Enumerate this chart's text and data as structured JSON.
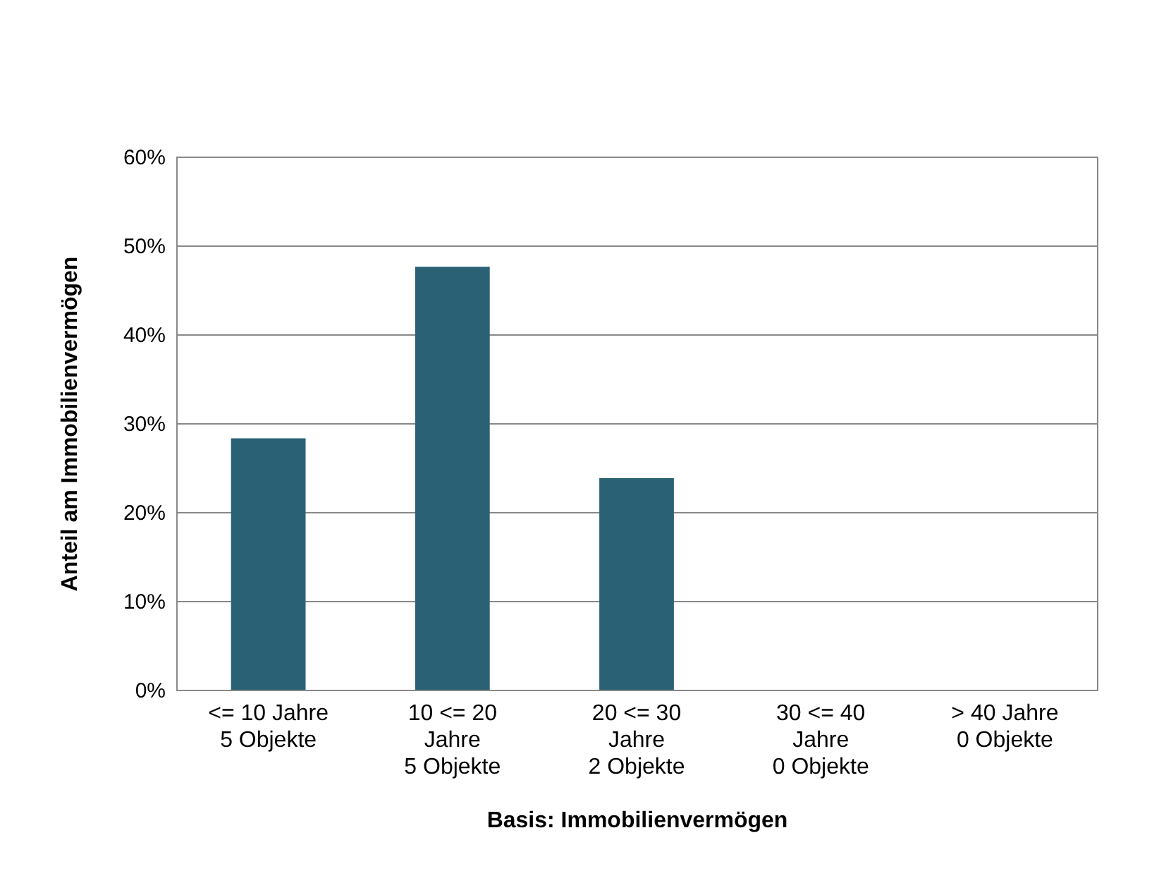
{
  "chart_data": {
    "type": "bar",
    "categories": [
      "<= 10 Jahre\n5 Objekte",
      "10 <= 20\nJahre\n5 Objekte",
      "20 <= 30\nJahre\n2 Objekte",
      "30 <= 40\nJahre\n0 Objekte",
      "> 40 Jahre\n0 Objekte"
    ],
    "values": [
      28.3,
      47.6,
      23.8,
      0,
      0
    ],
    "color": "#2a6175",
    "xlabel": "Basis: Immobilienvermögen",
    "ylabel": "Anteil am Immobilienvermögen",
    "ylim": [
      0,
      60
    ],
    "yticks": [
      {
        "value": 0,
        "label": "0%"
      },
      {
        "value": 10,
        "label": "10%"
      },
      {
        "value": 20,
        "label": "20%"
      },
      {
        "value": 30,
        "label": "30%"
      },
      {
        "value": 40,
        "label": "40%"
      },
      {
        "value": 50,
        "label": "50%"
      },
      {
        "value": 60,
        "label": "60%"
      }
    ],
    "grid": "y"
  }
}
